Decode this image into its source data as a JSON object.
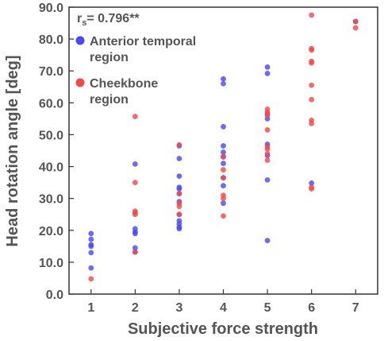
{
  "chart_data": {
    "type": "scatter",
    "xlabel": "Subjective force strength",
    "ylabel": "Head rotation angle [deg]",
    "xlim": [
      0.5,
      7.5
    ],
    "ylim": [
      0,
      90
    ],
    "x_ticks": [
      "1",
      "2",
      "3",
      "4",
      "5",
      "6",
      "7"
    ],
    "y_ticks": [
      "0.0",
      "10.0",
      "20.0",
      "30.0",
      "40.0",
      "50.0",
      "60.0",
      "70.0",
      "80.0",
      "90.0"
    ],
    "grid": false,
    "legend_position": "top-left",
    "annotation": {
      "prefix": "r",
      "subscript": "s",
      "suffix": "= 0.796**"
    },
    "series": [
      {
        "name": "Anterior temporal region",
        "color": "#4a4af0",
        "points": [
          [
            1,
            19.0
          ],
          [
            1,
            17.2
          ],
          [
            1,
            15.5
          ],
          [
            1,
            15.0
          ],
          [
            1,
            13.0
          ],
          [
            1,
            8.2
          ],
          [
            2,
            40.8
          ],
          [
            2,
            20.5
          ],
          [
            2,
            19.5
          ],
          [
            2,
            19.0
          ],
          [
            2,
            14.5
          ],
          [
            2,
            13.2
          ],
          [
            3,
            46.5
          ],
          [
            3,
            42.5
          ],
          [
            3,
            37.0
          ],
          [
            3,
            33.5
          ],
          [
            3,
            33.0
          ],
          [
            3,
            31.5
          ],
          [
            3,
            29.0
          ],
          [
            3,
            25.0
          ],
          [
            3,
            23.0
          ],
          [
            3,
            22.0
          ],
          [
            3,
            21.0
          ],
          [
            3,
            20.5
          ],
          [
            4,
            67.5
          ],
          [
            4,
            66.0
          ],
          [
            4,
            52.5
          ],
          [
            4,
            46.5
          ],
          [
            4,
            44.5
          ],
          [
            4,
            43.0
          ],
          [
            4,
            41.0
          ],
          [
            4,
            36.5
          ],
          [
            4,
            34.0
          ],
          [
            4,
            28.5
          ],
          [
            5,
            71.2
          ],
          [
            5,
            69.2
          ],
          [
            5,
            56.5
          ],
          [
            5,
            55.0
          ],
          [
            5,
            47.0
          ],
          [
            5,
            43.5
          ],
          [
            5,
            35.8
          ],
          [
            5,
            16.8
          ],
          [
            6,
            34.8
          ],
          [
            7,
            85.5
          ]
        ]
      },
      {
        "name": "Cheekbone region",
        "color": "#f04a4a",
        "points": [
          [
            1,
            4.8
          ],
          [
            2,
            55.7
          ],
          [
            2,
            35.0
          ],
          [
            2,
            26.0
          ],
          [
            2,
            25.5
          ],
          [
            2,
            25.0
          ],
          [
            2,
            13.2
          ],
          [
            3,
            46.8
          ],
          [
            3,
            31.5
          ],
          [
            3,
            28.5
          ],
          [
            3,
            27.5
          ],
          [
            3,
            25.0
          ],
          [
            4,
            43.2
          ],
          [
            4,
            39.0
          ],
          [
            4,
            36.5
          ],
          [
            4,
            31.0
          ],
          [
            4,
            30.0
          ],
          [
            4,
            24.5
          ],
          [
            5,
            58.0
          ],
          [
            5,
            57.0
          ],
          [
            5,
            56.0
          ],
          [
            5,
            51.5
          ],
          [
            5,
            46.2
          ],
          [
            5,
            45.5
          ],
          [
            5,
            44.0
          ],
          [
            5,
            42.0
          ],
          [
            6,
            87.5
          ],
          [
            6,
            77.0
          ],
          [
            6,
            76.5
          ],
          [
            6,
            73.0
          ],
          [
            6,
            72.5
          ],
          [
            6,
            65.5
          ],
          [
            6,
            61.0
          ],
          [
            6,
            54.5
          ],
          [
            6,
            53.5
          ],
          [
            6,
            33.5
          ],
          [
            6,
            33.0
          ],
          [
            7,
            85.5
          ],
          [
            7,
            83.5
          ]
        ]
      }
    ]
  }
}
